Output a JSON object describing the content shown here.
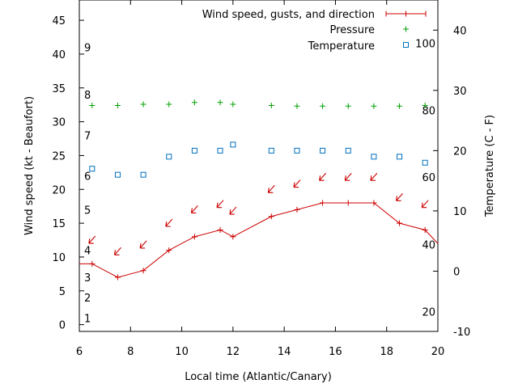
{
  "chart_data": {
    "type": "line",
    "xlabel": "Local time (Atlantic/Canary)",
    "ylabel_left": "Wind speed (kt - Beaufort)",
    "ylabel_right": "Temperature (C - F)",
    "xlim": [
      6,
      20
    ],
    "ylim_left": [
      -1,
      48
    ],
    "ylim_right": [
      -10,
      45
    ],
    "x_ticks": [
      "6",
      "8",
      "10",
      "12",
      "14",
      "16",
      "18",
      "20"
    ],
    "y_ticks_left": [
      "0",
      "5",
      "10",
      "15",
      "20",
      "25",
      "30",
      "35",
      "40",
      "45"
    ],
    "y_ticks_right": [
      "-10",
      "0",
      "10",
      "20",
      "30",
      "40"
    ],
    "beaufort_labels": [
      {
        "label": "1",
        "at_kt": 1
      },
      {
        "label": "2",
        "at_kt": 4
      },
      {
        "label": "3",
        "at_kt": 7
      },
      {
        "label": "4",
        "at_kt": 11
      },
      {
        "label": "5",
        "at_kt": 17
      },
      {
        "label": "6",
        "at_kt": 22
      },
      {
        "label": "7",
        "at_kt": 28
      },
      {
        "label": "8",
        "at_kt": 34
      },
      {
        "label": "9",
        "at_kt": 41
      }
    ],
    "fahrenheit_labels": [
      {
        "label": "20",
        "at_c": -6.7
      },
      {
        "label": "40",
        "at_c": 4.4
      },
      {
        "label": "60",
        "at_c": 15.6
      },
      {
        "label": "80",
        "at_c": 26.7
      },
      {
        "label": "100",
        "at_c": 37.8
      }
    ],
    "legend": {
      "position": "top-right",
      "entries": [
        "Wind speed, gusts, and direction",
        "Pressure",
        "Temperature"
      ]
    },
    "series": [
      {
        "name": "Wind speed, gusts, and direction",
        "axis": "left",
        "color": "#cc0000",
        "x": [
          6,
          6.5,
          7.5,
          8.5,
          9.5,
          10.5,
          11.5,
          12,
          13.5,
          14.5,
          15.5,
          16.5,
          17.5,
          18.5,
          19.5,
          20
        ],
        "values": [
          9,
          9,
          7,
          8,
          11,
          13,
          14,
          13,
          16,
          17,
          18,
          18,
          18,
          15,
          14,
          12
        ]
      },
      {
        "name": "Pressure",
        "axis": "right",
        "color": "#00a000",
        "x": [
          6.5,
          7.5,
          8.5,
          9.5,
          10.5,
          11.5,
          12,
          13.5,
          14.5,
          15.5,
          16.5,
          17.5,
          18.5,
          19.5
        ],
        "values": [
          27.5,
          27.5,
          27.7,
          27.7,
          28.0,
          28.0,
          27.7,
          27.5,
          27.4,
          27.4,
          27.4,
          27.4,
          27.4,
          27.5
        ]
      },
      {
        "name": "Temperature",
        "axis": "right",
        "color": "#0070c0",
        "x": [
          6.5,
          7.5,
          8.5,
          9.5,
          10.5,
          11.5,
          12,
          13.5,
          14.5,
          15.5,
          16.5,
          17.5,
          18.5,
          19.5
        ],
        "values": [
          17,
          16,
          16,
          19,
          20,
          20,
          21,
          20,
          20,
          20,
          20,
          19,
          19,
          18
        ]
      }
    ],
    "wind_direction": [
      {
        "x": 6.5,
        "y": 12.5
      },
      {
        "x": 7.5,
        "y": 10.8
      },
      {
        "x": 8.5,
        "y": 11.8
      },
      {
        "x": 9.5,
        "y": 15.0
      },
      {
        "x": 10.5,
        "y": 17.0
      },
      {
        "x": 11.5,
        "y": 17.8
      },
      {
        "x": 12,
        "y": 16.8
      },
      {
        "x": 13.5,
        "y": 20.0
      },
      {
        "x": 14.5,
        "y": 20.8
      },
      {
        "x": 15.5,
        "y": 21.8
      },
      {
        "x": 16.5,
        "y": 21.8
      },
      {
        "x": 17.5,
        "y": 21.8
      },
      {
        "x": 18.5,
        "y": 18.8
      },
      {
        "x": 19.5,
        "y": 17.8
      }
    ]
  }
}
